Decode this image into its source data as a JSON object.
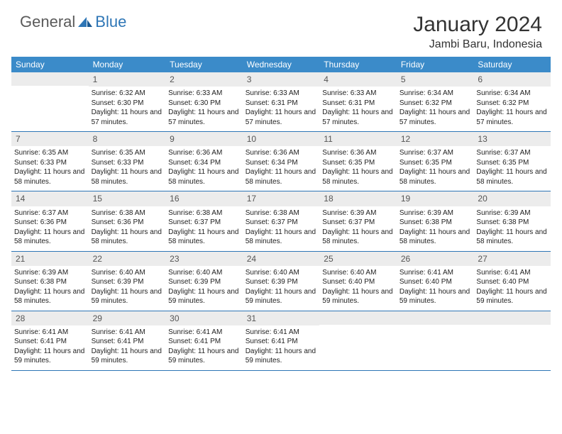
{
  "logo": {
    "text1": "General",
    "text2": "Blue"
  },
  "title": "January 2024",
  "location": "Jambi Baru, Indonesia",
  "day_names": [
    "Sunday",
    "Monday",
    "Tuesday",
    "Wednesday",
    "Thursday",
    "Friday",
    "Saturday"
  ],
  "colors": {
    "header_bg": "#3b8bc9",
    "border": "#2e76b6",
    "daynum_bg": "#ececec",
    "text": "#222222",
    "logo_gray": "#5a5a5a",
    "logo_blue": "#2e76b6"
  },
  "weeks": [
    [
      {
        "day": "",
        "lines": []
      },
      {
        "day": "1",
        "lines": [
          "Sunrise: 6:32 AM",
          "Sunset: 6:30 PM",
          "Daylight: 11 hours and 57 minutes."
        ]
      },
      {
        "day": "2",
        "lines": [
          "Sunrise: 6:33 AM",
          "Sunset: 6:30 PM",
          "Daylight: 11 hours and 57 minutes."
        ]
      },
      {
        "day": "3",
        "lines": [
          "Sunrise: 6:33 AM",
          "Sunset: 6:31 PM",
          "Daylight: 11 hours and 57 minutes."
        ]
      },
      {
        "day": "4",
        "lines": [
          "Sunrise: 6:33 AM",
          "Sunset: 6:31 PM",
          "Daylight: 11 hours and 57 minutes."
        ]
      },
      {
        "day": "5",
        "lines": [
          "Sunrise: 6:34 AM",
          "Sunset: 6:32 PM",
          "Daylight: 11 hours and 57 minutes."
        ]
      },
      {
        "day": "6",
        "lines": [
          "Sunrise: 6:34 AM",
          "Sunset: 6:32 PM",
          "Daylight: 11 hours and 57 minutes."
        ]
      }
    ],
    [
      {
        "day": "7",
        "lines": [
          "Sunrise: 6:35 AM",
          "Sunset: 6:33 PM",
          "Daylight: 11 hours and 58 minutes."
        ]
      },
      {
        "day": "8",
        "lines": [
          "Sunrise: 6:35 AM",
          "Sunset: 6:33 PM",
          "Daylight: 11 hours and 58 minutes."
        ]
      },
      {
        "day": "9",
        "lines": [
          "Sunrise: 6:36 AM",
          "Sunset: 6:34 PM",
          "Daylight: 11 hours and 58 minutes."
        ]
      },
      {
        "day": "10",
        "lines": [
          "Sunrise: 6:36 AM",
          "Sunset: 6:34 PM",
          "Daylight: 11 hours and 58 minutes."
        ]
      },
      {
        "day": "11",
        "lines": [
          "Sunrise: 6:36 AM",
          "Sunset: 6:35 PM",
          "Daylight: 11 hours and 58 minutes."
        ]
      },
      {
        "day": "12",
        "lines": [
          "Sunrise: 6:37 AM",
          "Sunset: 6:35 PM",
          "Daylight: 11 hours and 58 minutes."
        ]
      },
      {
        "day": "13",
        "lines": [
          "Sunrise: 6:37 AM",
          "Sunset: 6:35 PM",
          "Daylight: 11 hours and 58 minutes."
        ]
      }
    ],
    [
      {
        "day": "14",
        "lines": [
          "Sunrise: 6:37 AM",
          "Sunset: 6:36 PM",
          "Daylight: 11 hours and 58 minutes."
        ]
      },
      {
        "day": "15",
        "lines": [
          "Sunrise: 6:38 AM",
          "Sunset: 6:36 PM",
          "Daylight: 11 hours and 58 minutes."
        ]
      },
      {
        "day": "16",
        "lines": [
          "Sunrise: 6:38 AM",
          "Sunset: 6:37 PM",
          "Daylight: 11 hours and 58 minutes."
        ]
      },
      {
        "day": "17",
        "lines": [
          "Sunrise: 6:38 AM",
          "Sunset: 6:37 PM",
          "Daylight: 11 hours and 58 minutes."
        ]
      },
      {
        "day": "18",
        "lines": [
          "Sunrise: 6:39 AM",
          "Sunset: 6:37 PM",
          "Daylight: 11 hours and 58 minutes."
        ]
      },
      {
        "day": "19",
        "lines": [
          "Sunrise: 6:39 AM",
          "Sunset: 6:38 PM",
          "Daylight: 11 hours and 58 minutes."
        ]
      },
      {
        "day": "20",
        "lines": [
          "Sunrise: 6:39 AM",
          "Sunset: 6:38 PM",
          "Daylight: 11 hours and 58 minutes."
        ]
      }
    ],
    [
      {
        "day": "21",
        "lines": [
          "Sunrise: 6:39 AM",
          "Sunset: 6:38 PM",
          "Daylight: 11 hours and 58 minutes."
        ]
      },
      {
        "day": "22",
        "lines": [
          "Sunrise: 6:40 AM",
          "Sunset: 6:39 PM",
          "Daylight: 11 hours and 59 minutes."
        ]
      },
      {
        "day": "23",
        "lines": [
          "Sunrise: 6:40 AM",
          "Sunset: 6:39 PM",
          "Daylight: 11 hours and 59 minutes."
        ]
      },
      {
        "day": "24",
        "lines": [
          "Sunrise: 6:40 AM",
          "Sunset: 6:39 PM",
          "Daylight: 11 hours and 59 minutes."
        ]
      },
      {
        "day": "25",
        "lines": [
          "Sunrise: 6:40 AM",
          "Sunset: 6:40 PM",
          "Daylight: 11 hours and 59 minutes."
        ]
      },
      {
        "day": "26",
        "lines": [
          "Sunrise: 6:41 AM",
          "Sunset: 6:40 PM",
          "Daylight: 11 hours and 59 minutes."
        ]
      },
      {
        "day": "27",
        "lines": [
          "Sunrise: 6:41 AM",
          "Sunset: 6:40 PM",
          "Daylight: 11 hours and 59 minutes."
        ]
      }
    ],
    [
      {
        "day": "28",
        "lines": [
          "Sunrise: 6:41 AM",
          "Sunset: 6:41 PM",
          "Daylight: 11 hours and 59 minutes."
        ]
      },
      {
        "day": "29",
        "lines": [
          "Sunrise: 6:41 AM",
          "Sunset: 6:41 PM",
          "Daylight: 11 hours and 59 minutes."
        ]
      },
      {
        "day": "30",
        "lines": [
          "Sunrise: 6:41 AM",
          "Sunset: 6:41 PM",
          "Daylight: 11 hours and 59 minutes."
        ]
      },
      {
        "day": "31",
        "lines": [
          "Sunrise: 6:41 AM",
          "Sunset: 6:41 PM",
          "Daylight: 11 hours and 59 minutes."
        ]
      },
      {
        "day": "",
        "lines": []
      },
      {
        "day": "",
        "lines": []
      },
      {
        "day": "",
        "lines": []
      }
    ]
  ]
}
